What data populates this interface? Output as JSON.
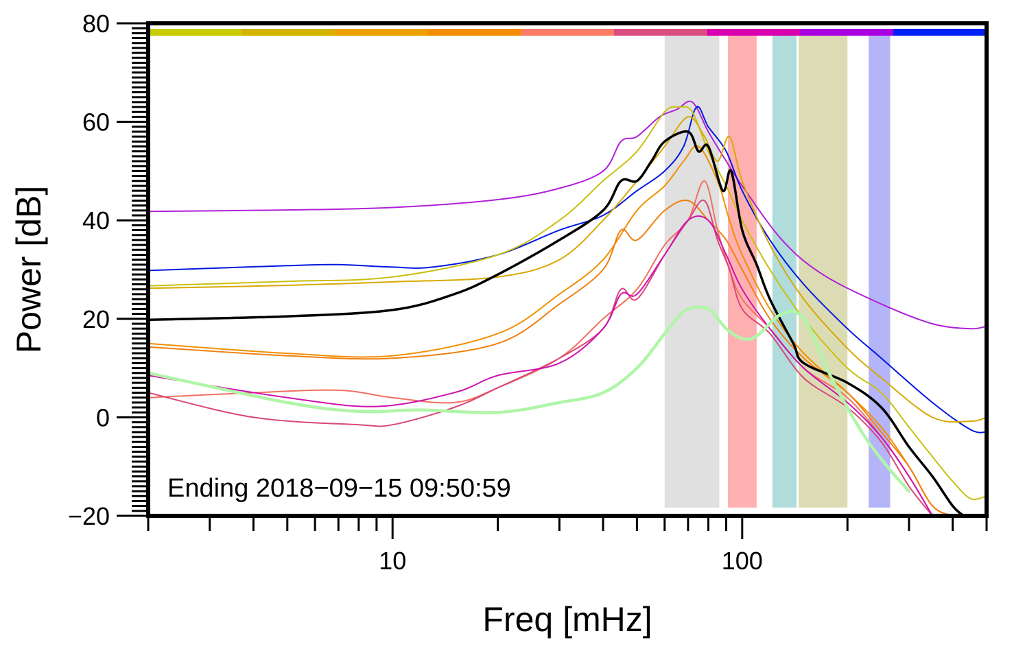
{
  "chart_data": {
    "type": "line",
    "title": "",
    "xlabel": "Freq [mHz]",
    "ylabel": "Power [dB]",
    "xscale": "log",
    "xlim": [
      2,
      500
    ],
    "ylim": [
      -20,
      80
    ],
    "x_tick_labels": [
      {
        "value": 10,
        "label": "10"
      },
      {
        "value": 100,
        "label": "100"
      }
    ],
    "y_tick_labels": [
      {
        "value": -20,
        "label": "−20"
      },
      {
        "value": 0,
        "label": "0"
      },
      {
        "value": 20,
        "label": "20"
      },
      {
        "value": 40,
        "label": "40"
      },
      {
        "value": 60,
        "label": "60"
      },
      {
        "value": 80,
        "label": "80"
      }
    ],
    "annotation": "Ending 2018−09−15 09:50:59",
    "bands": [
      {
        "x0": 60,
        "x1": 86,
        "color": "#e0e0e0"
      },
      {
        "x0": 91,
        "x1": 110,
        "color": "#ffb0b0"
      },
      {
        "x0": 122,
        "x1": 143,
        "color": "#b0dcdc"
      },
      {
        "x0": 145,
        "x1": 200,
        "color": "#dcdcb4"
      },
      {
        "x0": 230,
        "x1": 265,
        "color": "#b4b4f8"
      }
    ],
    "color_strip": [
      "#c8cc00",
      "#d4b400",
      "#eea000",
      "#f48c00",
      "#fc7c68",
      "#dc4c80",
      "#d800b0",
      "#a800e0",
      "#0020f8"
    ],
    "series": [
      {
        "name": "trace-violet",
        "color": "#b020d8",
        "width": 2,
        "x": [
          2,
          5,
          10,
          20,
          30,
          40,
          45,
          50,
          58,
          65,
          72,
          80,
          90,
          100,
          130,
          170,
          250,
          350,
          450,
          500
        ],
        "y": [
          41.8,
          42.1,
          42.6,
          44.2,
          46.5,
          50,
          56,
          57,
          61,
          62.5,
          64,
          58,
          52,
          47,
          36,
          29,
          23,
          19,
          18,
          18.5
        ]
      },
      {
        "name": "trace-blue",
        "color": "#0018e0",
        "width": 2,
        "x": [
          2,
          5,
          7,
          10,
          13,
          20,
          30,
          40,
          50,
          60,
          68,
          74,
          80,
          90,
          100,
          120,
          150,
          200,
          250,
          350,
          450,
          500
        ],
        "y": [
          29.8,
          30.8,
          31,
          30.5,
          30.5,
          33,
          38,
          41,
          46,
          50,
          55,
          63,
          59,
          54,
          46,
          36,
          27,
          18,
          12,
          3,
          -2.5,
          -3
        ]
      },
      {
        "name": "trace-yellow-1",
        "color": "#c8c010",
        "width": 2,
        "x": [
          2,
          5,
          10,
          20,
          30,
          40,
          50,
          60,
          66,
          72,
          80,
          90,
          100,
          120,
          150,
          200,
          250,
          300,
          350,
          400,
          450,
          500
        ],
        "y": [
          26.7,
          27.6,
          28.5,
          33,
          40,
          48,
          54,
          62,
          63,
          62,
          54,
          47,
          40,
          30,
          20,
          10,
          5,
          -2,
          -8,
          -13,
          -16.5,
          -16
        ]
      },
      {
        "name": "trace-yellow-2",
        "color": "#d8a800",
        "width": 2,
        "x": [
          2,
          5,
          10,
          20,
          30,
          40,
          50,
          60,
          70,
          78,
          85,
          92,
          100,
          120,
          150,
          200,
          250,
          350,
          450,
          500
        ],
        "y": [
          26.2,
          26.8,
          27.5,
          28.5,
          32,
          40,
          48,
          55,
          61,
          57,
          52,
          57,
          48,
          35,
          24,
          14,
          8,
          0,
          -0.8,
          0
        ]
      },
      {
        "name": "trace-orange-1",
        "color": "#f09000",
        "width": 2,
        "x": [
          2,
          5,
          10,
          20,
          30,
          40,
          50,
          60,
          68,
          75,
          85,
          92,
          100,
          120,
          150,
          200,
          250,
          300,
          350,
          400
        ],
        "y": [
          15,
          13,
          12.5,
          17,
          25,
          32,
          42,
          47,
          52,
          55,
          48,
          40,
          33,
          22,
          13,
          5,
          -2,
          -10,
          -18,
          -20
        ]
      },
      {
        "name": "trace-orange-2",
        "color": "#f08010",
        "width": 2,
        "x": [
          2,
          5,
          10,
          20,
          30,
          40,
          45,
          50,
          60,
          70,
          80,
          90,
          100,
          120,
          150,
          200,
          250,
          300,
          350,
          400
        ],
        "y": [
          14.3,
          12.5,
          12,
          15,
          23,
          30,
          38,
          36,
          42,
          44,
          40,
          36,
          30,
          20,
          12,
          5,
          -3,
          -10,
          -18,
          -20
        ]
      },
      {
        "name": "trace-salmon",
        "color": "#f07060",
        "width": 2,
        "x": [
          2,
          4,
          7,
          10,
          15,
          20,
          30,
          40,
          50,
          60,
          70,
          78,
          85,
          92,
          100,
          120,
          150,
          200,
          250,
          300,
          350
        ],
        "y": [
          4,
          5,
          5.5,
          4,
          3,
          6,
          12,
          20,
          26,
          35,
          40,
          48,
          38,
          30,
          24,
          18,
          10,
          4,
          -4,
          -12,
          -20
        ]
      },
      {
        "name": "trace-pink",
        "color": "#d84878",
        "width": 2,
        "x": [
          2,
          4,
          8,
          10,
          15,
          20,
          30,
          40,
          45,
          50,
          60,
          70,
          78,
          85,
          92,
          100,
          120,
          150,
          200,
          250,
          300,
          350
        ],
        "y": [
          5,
          0,
          -1.5,
          -1.5,
          2,
          6,
          12,
          18,
          26,
          24,
          33,
          40,
          44,
          36,
          30,
          22,
          17,
          8,
          2,
          -5,
          -14,
          -20
        ]
      },
      {
        "name": "trace-magenta",
        "color": "#d010b0",
        "width": 2,
        "x": [
          2,
          5,
          9,
          15,
          20,
          30,
          40,
          45,
          50,
          60,
          70,
          80,
          90,
          100,
          120,
          150,
          200,
          250,
          300,
          350
        ],
        "y": [
          8.5,
          4,
          2.2,
          5,
          8.5,
          11,
          18,
          25,
          25,
          33,
          40,
          40,
          33,
          26,
          18,
          10,
          3,
          -4,
          -12,
          -20
        ]
      },
      {
        "name": "trace-mean-black",
        "color": "#000000",
        "width": 3.5,
        "x": [
          2,
          5,
          10,
          15,
          20,
          30,
          40,
          45,
          50,
          55,
          60,
          70,
          75,
          80,
          88,
          93,
          100,
          110,
          120,
          140,
          150,
          200,
          250,
          300,
          350,
          400,
          430
        ],
        "y": [
          19.8,
          20.5,
          21.8,
          25,
          29,
          36,
          42,
          48,
          48,
          52,
          56,
          58,
          54,
          55,
          46,
          50,
          38,
          31,
          24,
          15,
          11,
          7,
          2,
          -6,
          -12,
          -18,
          -20
        ]
      },
      {
        "name": "trace-green",
        "color": "#b0f5a8",
        "width": 4.5,
        "x": [
          2,
          5,
          8,
          12,
          20,
          30,
          40,
          50,
          60,
          65,
          70,
          80,
          90,
          100,
          110,
          130,
          150,
          180,
          220,
          260,
          300
        ],
        "y": [
          9,
          3,
          1.2,
          1.5,
          1,
          3,
          5,
          10,
          17,
          20,
          22,
          22,
          18,
          16,
          16.5,
          21,
          20,
          8,
          -3,
          -10,
          -15
        ]
      }
    ]
  }
}
